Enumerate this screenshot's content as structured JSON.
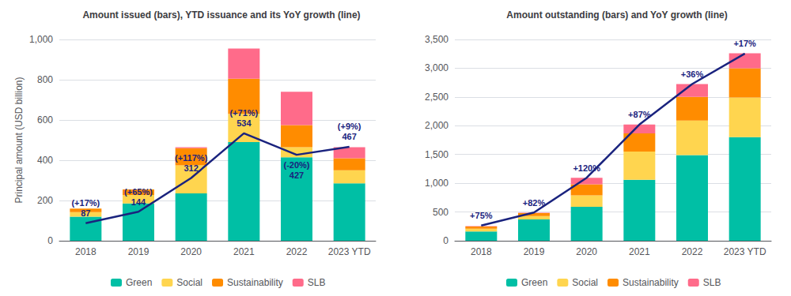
{
  "chart_data": [
    {
      "type": "bar",
      "stacked": true,
      "title": "Amount issued (bars), YTD issuance and its YoY growth (line)",
      "ylabel": "Principal amount (USD billion)",
      "categories": [
        "2018",
        "2019",
        "2020",
        "2021",
        "2022",
        "2023 YTD"
      ],
      "series": [
        {
          "name": "Green",
          "color": "#00BFA5",
          "values": [
            120,
            185,
            235,
            490,
            415,
            285
          ]
        },
        {
          "name": "Social",
          "color": "#FFD54F",
          "values": [
            22,
            42,
            140,
            140,
            50,
            65
          ]
        },
        {
          "name": "Sustainability",
          "color": "#FF8C00",
          "values": [
            18,
            28,
            85,
            175,
            110,
            60
          ]
        },
        {
          "name": "SLB",
          "color": "#FF6B8A",
          "values": [
            0,
            0,
            5,
            150,
            165,
            55
          ]
        },
        {
          "type": "line",
          "color": "#1a237e",
          "values": [
            87,
            144,
            312,
            534,
            427,
            467
          ],
          "data_labels": true,
          "growth": [
            17,
            65,
            117,
            71,
            -20,
            9
          ],
          "growth_labels": [
            "(+17%)",
            "(+65%)",
            "(+117%)",
            "(+71%)",
            "(-20%)",
            "(+9%)"
          ]
        }
      ],
      "ylim": [
        0,
        1000
      ],
      "yticks": [
        0,
        200,
        400,
        600,
        800,
        {
          "value": 1000,
          "label": "1,000"
        }
      ],
      "grid": true,
      "legend": "bottom"
    },
    {
      "type": "bar",
      "stacked": true,
      "title": "Amount outstanding (bars) and YoY growth (line)",
      "categories": [
        "2018",
        "2019",
        "2020",
        "2021",
        "2022",
        "2023 YTD"
      ],
      "series": [
        {
          "name": "Green",
          "color": "#00BFA5",
          "values": [
            160,
            370,
            590,
            1060,
            1490,
            1800
          ]
        },
        {
          "name": "Social",
          "color": "#FFD54F",
          "values": [
            50,
            60,
            200,
            490,
            600,
            690
          ]
        },
        {
          "name": "Sustainability",
          "color": "#FF8C00",
          "values": [
            38,
            52,
            190,
            315,
            410,
            510
          ]
        },
        {
          "name": "SLB",
          "color": "#FF6B8A",
          "values": [
            5,
            5,
            115,
            155,
            225,
            260
          ]
        },
        {
          "type": "line",
          "color": "#1a237e",
          "values": [
            265,
            490,
            1095,
            2020,
            2725,
            3255
          ],
          "data_labels": false,
          "growth": [
            75,
            82,
            120,
            87,
            36,
            17
          ],
          "growth_labels": [
            "+75%",
            "+82%",
            "+120%",
            "+87%",
            "+36%",
            "+17%"
          ]
        }
      ],
      "ylim": [
        0,
        3500
      ],
      "yticks": [
        0,
        500,
        {
          "value": 1000,
          "label": "1,000"
        },
        {
          "value": 1500,
          "label": "1,500"
        },
        {
          "value": 2000,
          "label": "2,000"
        },
        {
          "value": 2500,
          "label": "2,500"
        },
        {
          "value": 3000,
          "label": "3,000"
        },
        {
          "value": 3500,
          "label": "3,500"
        }
      ],
      "grid": true,
      "legend": "bottom"
    }
  ]
}
